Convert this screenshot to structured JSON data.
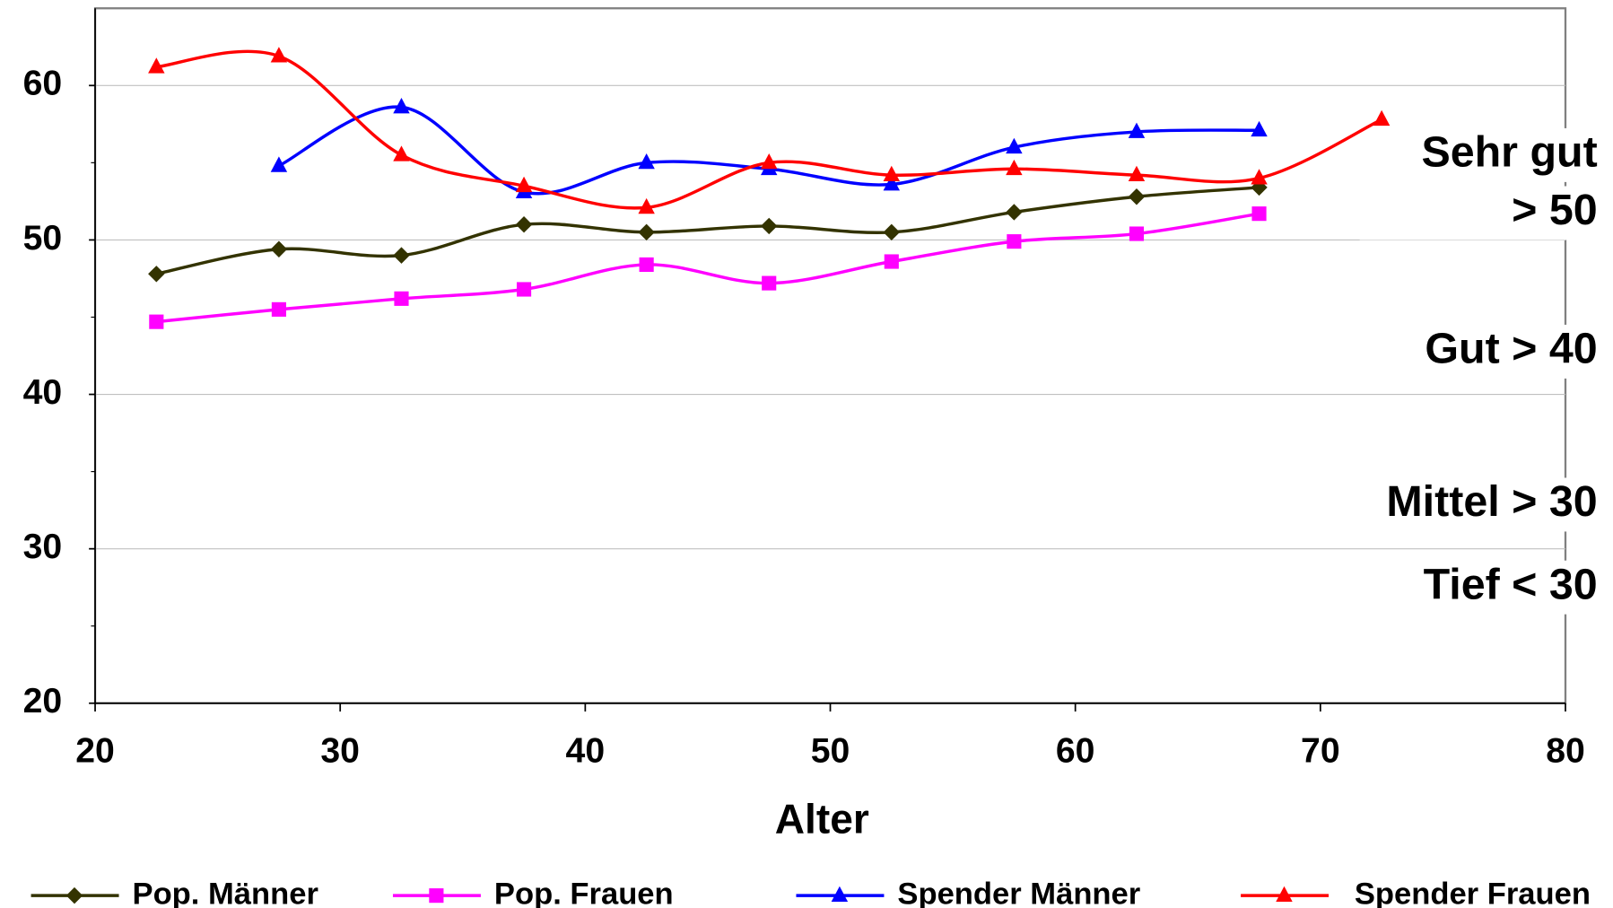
{
  "chart_data": {
    "type": "line",
    "x_label": "Alter",
    "xlim": [
      20,
      80
    ],
    "xticks": [
      20,
      30,
      40,
      50,
      60,
      70,
      80
    ],
    "ylim": [
      20,
      65
    ],
    "yticks": [
      20,
      30,
      40,
      50,
      60
    ],
    "grid": true,
    "annotations": [
      "Sehr gut",
      "> 50",
      "Gut > 40",
      "Mittel > 30",
      "Tief < 30"
    ],
    "series": [
      {
        "name": "Pop. Männer",
        "color": "#333300",
        "marker": "diamond",
        "x": [
          22.5,
          27.5,
          32.5,
          37.5,
          42.5,
          47.5,
          52.5,
          57.5,
          62.5,
          67.5
        ],
        "values": [
          47.8,
          49.4,
          49.0,
          51.0,
          50.5,
          50.9,
          50.5,
          51.8,
          52.8,
          53.4
        ]
      },
      {
        "name": "Pop. Frauen",
        "color": "#ff00ff",
        "marker": "square",
        "x": [
          22.5,
          27.5,
          32.5,
          37.5,
          42.5,
          47.5,
          52.5,
          57.5,
          62.5,
          67.5
        ],
        "values": [
          44.7,
          45.5,
          46.2,
          46.8,
          48.4,
          47.2,
          48.6,
          49.9,
          50.4,
          51.7
        ]
      },
      {
        "name": "Spender Männer",
        "color": "#0000ff",
        "marker": "triangle",
        "x": [
          27.5,
          32.5,
          37.5,
          42.5,
          47.5,
          52.5,
          57.5,
          62.5,
          67.5
        ],
        "values": [
          54.8,
          58.6,
          53.1,
          55.0,
          54.6,
          53.6,
          56.0,
          57.0,
          57.1
        ]
      },
      {
        "name": "Spender Frauen",
        "color": "#ff0000",
        "marker": "triangle",
        "x": [
          22.5,
          27.5,
          32.5,
          37.5,
          42.5,
          47.5,
          52.5,
          57.5,
          62.5,
          67.5,
          72.5
        ],
        "values": [
          61.2,
          61.9,
          55.5,
          53.5,
          52.1,
          55.0,
          54.2,
          54.6,
          54.2,
          54.0,
          57.8
        ]
      }
    ]
  }
}
